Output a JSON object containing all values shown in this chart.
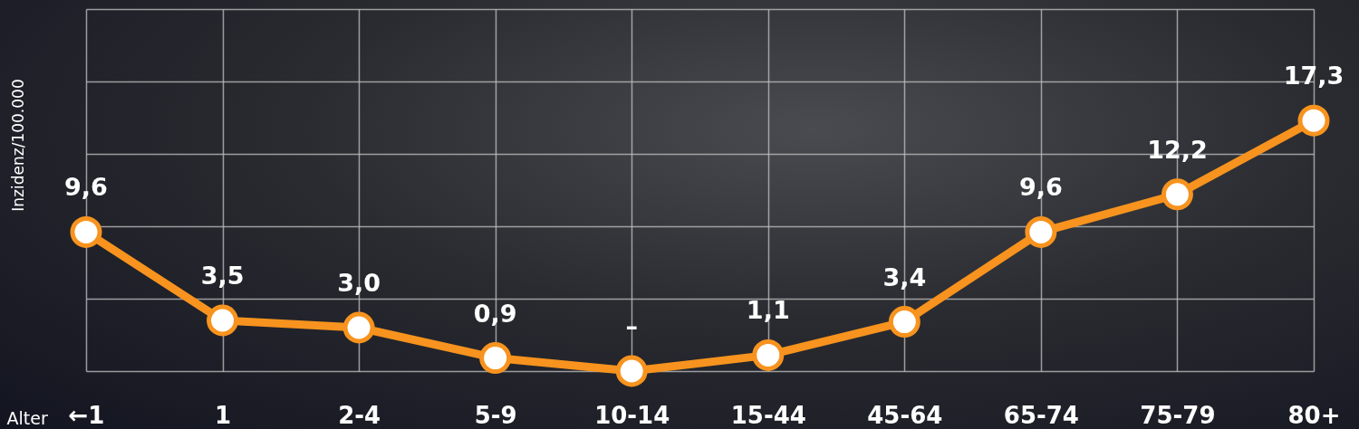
{
  "chart_data": {
    "type": "line",
    "xlabel": "Alter",
    "ylabel": "Inzidenz/100.000",
    "categories": [
      "←1",
      "1",
      "2-4",
      "5-9",
      "10-14",
      "15-44",
      "45-64",
      "65-74",
      "75-79",
      "80+"
    ],
    "series": [
      {
        "color": "#f7931e",
        "values": [
          9.6,
          3.5,
          3.0,
          0.9,
          0,
          1.1,
          3.4,
          9.6,
          12.2,
          17.3
        ],
        "value_labels": [
          "9,6",
          "3,5",
          "3,0",
          "0,9",
          "–",
          "1,1",
          "3,4",
          "9,6",
          "12,2",
          "17,3"
        ]
      }
    ],
    "ylim": [
      0,
      25
    ],
    "yticks": [
      {
        "value": 0,
        "label": null
      },
      {
        "value": 5,
        "label": null
      },
      {
        "value": 10,
        "label": null
      },
      {
        "value": 15,
        "label": null
      },
      {
        "value": 20,
        "label": null
      },
      {
        "value": 25,
        "label": null
      }
    ],
    "tick_labels": "x",
    "grid": true,
    "marker": "circle",
    "line_style": "solid"
  }
}
